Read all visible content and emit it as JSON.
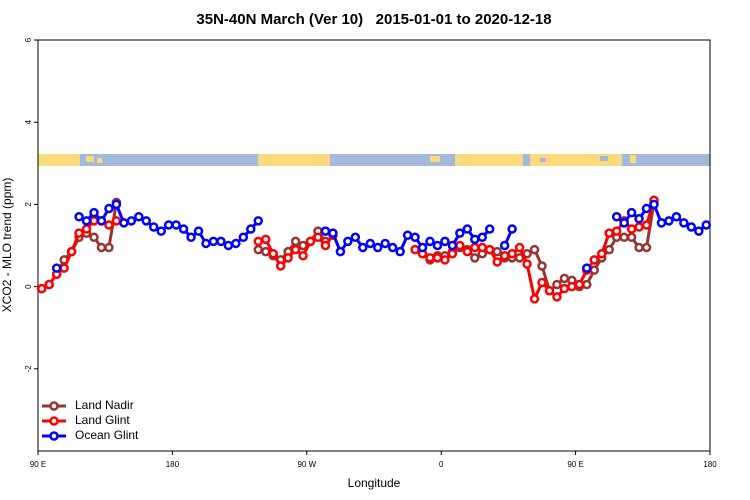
{
  "chart_data": {
    "type": "line",
    "title": "35N-40N March (Ver 10)   2015-01-01 to 2020-12-18",
    "x_label": "Longitude",
    "y_label": "XCO2 - MLO trend (ppm)",
    "xlim": [
      90,
      540
    ],
    "xticks": [
      {
        "value": 90,
        "label": "90 E"
      },
      {
        "value": 180,
        "label": "180"
      },
      {
        "value": 270,
        "label": "90 W"
      },
      {
        "value": 360,
        "label": "0"
      },
      {
        "value": 450,
        "label": "90 E"
      },
      {
        "value": 540,
        "label": "180"
      }
    ],
    "ylim": [
      -4,
      6
    ],
    "yticks": [
      -2,
      0,
      2,
      4,
      6
    ],
    "legend": "bottom-left",
    "x": [
      92.5,
      97.5,
      102.5,
      107.5,
      112.5,
      117.5,
      122.5,
      127.5,
      132.5,
      137.5,
      142.5,
      147.5,
      152.5,
      157.5,
      162.5,
      167.5,
      172.5,
      177.5,
      182.5,
      187.5,
      192.5,
      197.5,
      202.5,
      207.5,
      212.5,
      217.5,
      222.5,
      227.5,
      232.5,
      237.5,
      242.5,
      247.5,
      252.5,
      257.5,
      262.5,
      267.5,
      272.5,
      277.5,
      282.5,
      287.5,
      292.5,
      297.5,
      302.5,
      307.5,
      312.5,
      317.5,
      322.5,
      327.5,
      332.5,
      337.5,
      342.5,
      347.5,
      352.5,
      357.5,
      362.5,
      367.5,
      372.5,
      377.5,
      382.5,
      387.5,
      392.5,
      397.5,
      402.5,
      407.5,
      412.5,
      417.5,
      422.5,
      427.5,
      432.5,
      437.5,
      442.5,
      447.5,
      452.5,
      457.5,
      462.5,
      467.5,
      472.5,
      477.5,
      482.5,
      487.5,
      492.5,
      497.5,
      502.5,
      507.5,
      512.5,
      517.5,
      522.5,
      527.5,
      532.5,
      537.5
    ],
    "series": [
      {
        "name": "Land Nadir",
        "color": "#993333",
        "values": [
          -0.05,
          0.05,
          0.3,
          0.65,
          0.85,
          1.2,
          1.3,
          1.2,
          0.95,
          0.95,
          2.05,
          null,
          null,
          null,
          null,
          null,
          null,
          null,
          null,
          null,
          null,
          null,
          null,
          null,
          null,
          null,
          null,
          null,
          null,
          0.9,
          0.85,
          0.75,
          0.65,
          0.85,
          1.1,
          1.0,
          1.1,
          1.35,
          1.1,
          null,
          null,
          null,
          null,
          null,
          null,
          null,
          null,
          null,
          null,
          null,
          null,
          0.8,
          0.65,
          0.75,
          0.75,
          0.85,
          0.95,
          0.9,
          0.7,
          0.8,
          0.9,
          0.85,
          0.7,
          0.7,
          0.7,
          0.8,
          0.9,
          0.5,
          -0.1,
          0.05,
          0.2,
          0.15,
          0.0,
          0.05,
          0.4,
          0.7,
          0.9,
          1.2,
          1.2,
          1.2,
          0.95,
          0.95,
          2.05,
          null,
          null,
          null,
          null,
          null,
          null,
          null
        ]
      },
      {
        "name": "Land Glint",
        "color": "#ff0000",
        "values": [
          -0.05,
          0.05,
          0.3,
          0.45,
          0.85,
          1.3,
          1.4,
          1.6,
          1.6,
          1.5,
          1.6,
          null,
          null,
          null,
          null,
          null,
          null,
          null,
          null,
          null,
          null,
          null,
          null,
          null,
          null,
          null,
          null,
          null,
          null,
          1.1,
          1.15,
          0.8,
          0.5,
          0.7,
          0.9,
          0.75,
          1.1,
          1.2,
          1.0,
          1.25,
          null,
          null,
          null,
          null,
          null,
          null,
          null,
          null,
          null,
          null,
          0.9,
          0.8,
          0.7,
          0.7,
          0.65,
          0.8,
          1.0,
          0.85,
          0.95,
          0.95,
          0.9,
          0.6,
          0.75,
          0.8,
          0.95,
          0.55,
          -0.3,
          0.1,
          -0.1,
          -0.25,
          -0.05,
          0.0,
          0.05,
          0.4,
          0.65,
          0.8,
          1.3,
          1.35,
          1.6,
          1.4,
          1.45,
          1.5,
          2.1,
          null,
          null,
          null,
          null,
          null,
          null,
          null
        ]
      },
      {
        "name": "Ocean Glint",
        "color": "#0000ff",
        "values": [
          null,
          null,
          0.45,
          null,
          null,
          1.7,
          1.6,
          1.8,
          1.6,
          1.9,
          2.0,
          1.55,
          1.6,
          1.7,
          1.6,
          1.45,
          1.35,
          1.5,
          1.5,
          1.4,
          1.2,
          1.35,
          1.05,
          1.1,
          1.1,
          1.0,
          1.05,
          1.2,
          1.4,
          1.6,
          null,
          null,
          null,
          null,
          null,
          null,
          null,
          null,
          1.35,
          1.3,
          0.85,
          1.1,
          1.2,
          0.95,
          1.05,
          0.95,
          1.05,
          0.95,
          0.85,
          1.25,
          1.2,
          0.95,
          1.1,
          1.0,
          1.1,
          1.0,
          1.3,
          1.4,
          1.15,
          1.2,
          1.4,
          null,
          1.0,
          1.4,
          null,
          null,
          null,
          null,
          null,
          null,
          null,
          null,
          null,
          0.45,
          null,
          null,
          null,
          1.7,
          1.55,
          1.8,
          1.65,
          1.9,
          2.0,
          1.55,
          1.6,
          1.7,
          1.55,
          1.45,
          1.35,
          1.5
        ]
      }
    ]
  }
}
